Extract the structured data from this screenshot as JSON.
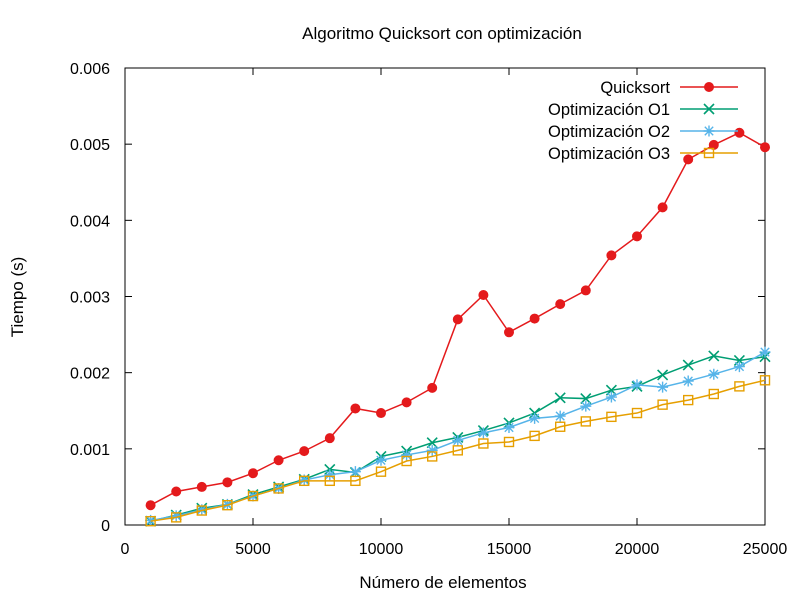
{
  "chart_data": {
    "type": "line",
    "title": "Algoritmo Quicksort con optimización",
    "xlabel": "Número de elementos",
    "ylabel": "Tiempo (s)",
    "xlim": [
      0,
      25000
    ],
    "ylim": [
      0,
      0.006
    ],
    "x_ticks": [
      0,
      5000,
      10000,
      15000,
      20000,
      25000
    ],
    "x_tick_labels": [
      "0",
      "5000",
      "10000",
      "15000",
      "20000",
      "25000"
    ],
    "y_ticks": [
      0,
      0.001,
      0.002,
      0.003,
      0.004,
      0.005,
      0.006
    ],
    "y_tick_labels": [
      "0",
      "0.001",
      "0.002",
      "0.003",
      "0.004",
      "0.005",
      "0.006"
    ],
    "grid": false,
    "legend_position": "top-right",
    "x": [
      1000,
      2000,
      3000,
      4000,
      5000,
      6000,
      7000,
      8000,
      9000,
      10000,
      11000,
      12000,
      13000,
      14000,
      15000,
      16000,
      17000,
      18000,
      19000,
      20000,
      21000,
      22000,
      23000,
      24000,
      25000
    ],
    "series": [
      {
        "name": "Quicksort",
        "color": "#e41a1c",
        "marker": "filled-circle",
        "values": [
          0.00026,
          0.00044,
          0.0005,
          0.00056,
          0.00068,
          0.00085,
          0.00097,
          0.00114,
          0.00153,
          0.00147,
          0.00161,
          0.0018,
          0.0027,
          0.00302,
          0.00253,
          0.00271,
          0.0029,
          0.00308,
          0.00354,
          0.00379,
          0.00417,
          0.0048,
          0.00499,
          0.00515,
          0.00496
        ]
      },
      {
        "name": "Optimización O1",
        "color": "#009e73",
        "marker": "x",
        "values": [
          5e-05,
          0.00013,
          0.00022,
          0.00027,
          0.0004,
          0.0005,
          0.0006,
          0.00073,
          0.00069,
          0.0009,
          0.00097,
          0.00108,
          0.00115,
          0.00124,
          0.00134,
          0.00147,
          0.00167,
          0.00166,
          0.00177,
          0.00182,
          0.00197,
          0.0021,
          0.00222,
          0.00216,
          0.00221
        ]
      },
      {
        "name": "Optimización O2",
        "color": "#56b4e9",
        "marker": "asterisk",
        "values": [
          6e-05,
          0.00012,
          0.0002,
          0.00027,
          0.00038,
          0.00048,
          0.00059,
          0.00066,
          0.0007,
          0.00085,
          0.00092,
          0.00098,
          0.00111,
          0.00121,
          0.00128,
          0.0014,
          0.00143,
          0.00156,
          0.00168,
          0.00184,
          0.00181,
          0.00189,
          0.00198,
          0.00208,
          0.00227
        ]
      },
      {
        "name": "Optimización O3",
        "color": "#e69f00",
        "marker": "open-square",
        "values": [
          5e-05,
          0.0001,
          0.00019,
          0.00026,
          0.00038,
          0.00048,
          0.00058,
          0.00058,
          0.00058,
          0.0007,
          0.00084,
          0.0009,
          0.00098,
          0.00107,
          0.00109,
          0.00117,
          0.00129,
          0.00136,
          0.00142,
          0.00147,
          0.00158,
          0.00164,
          0.00172,
          0.00182,
          0.0019
        ]
      }
    ]
  }
}
